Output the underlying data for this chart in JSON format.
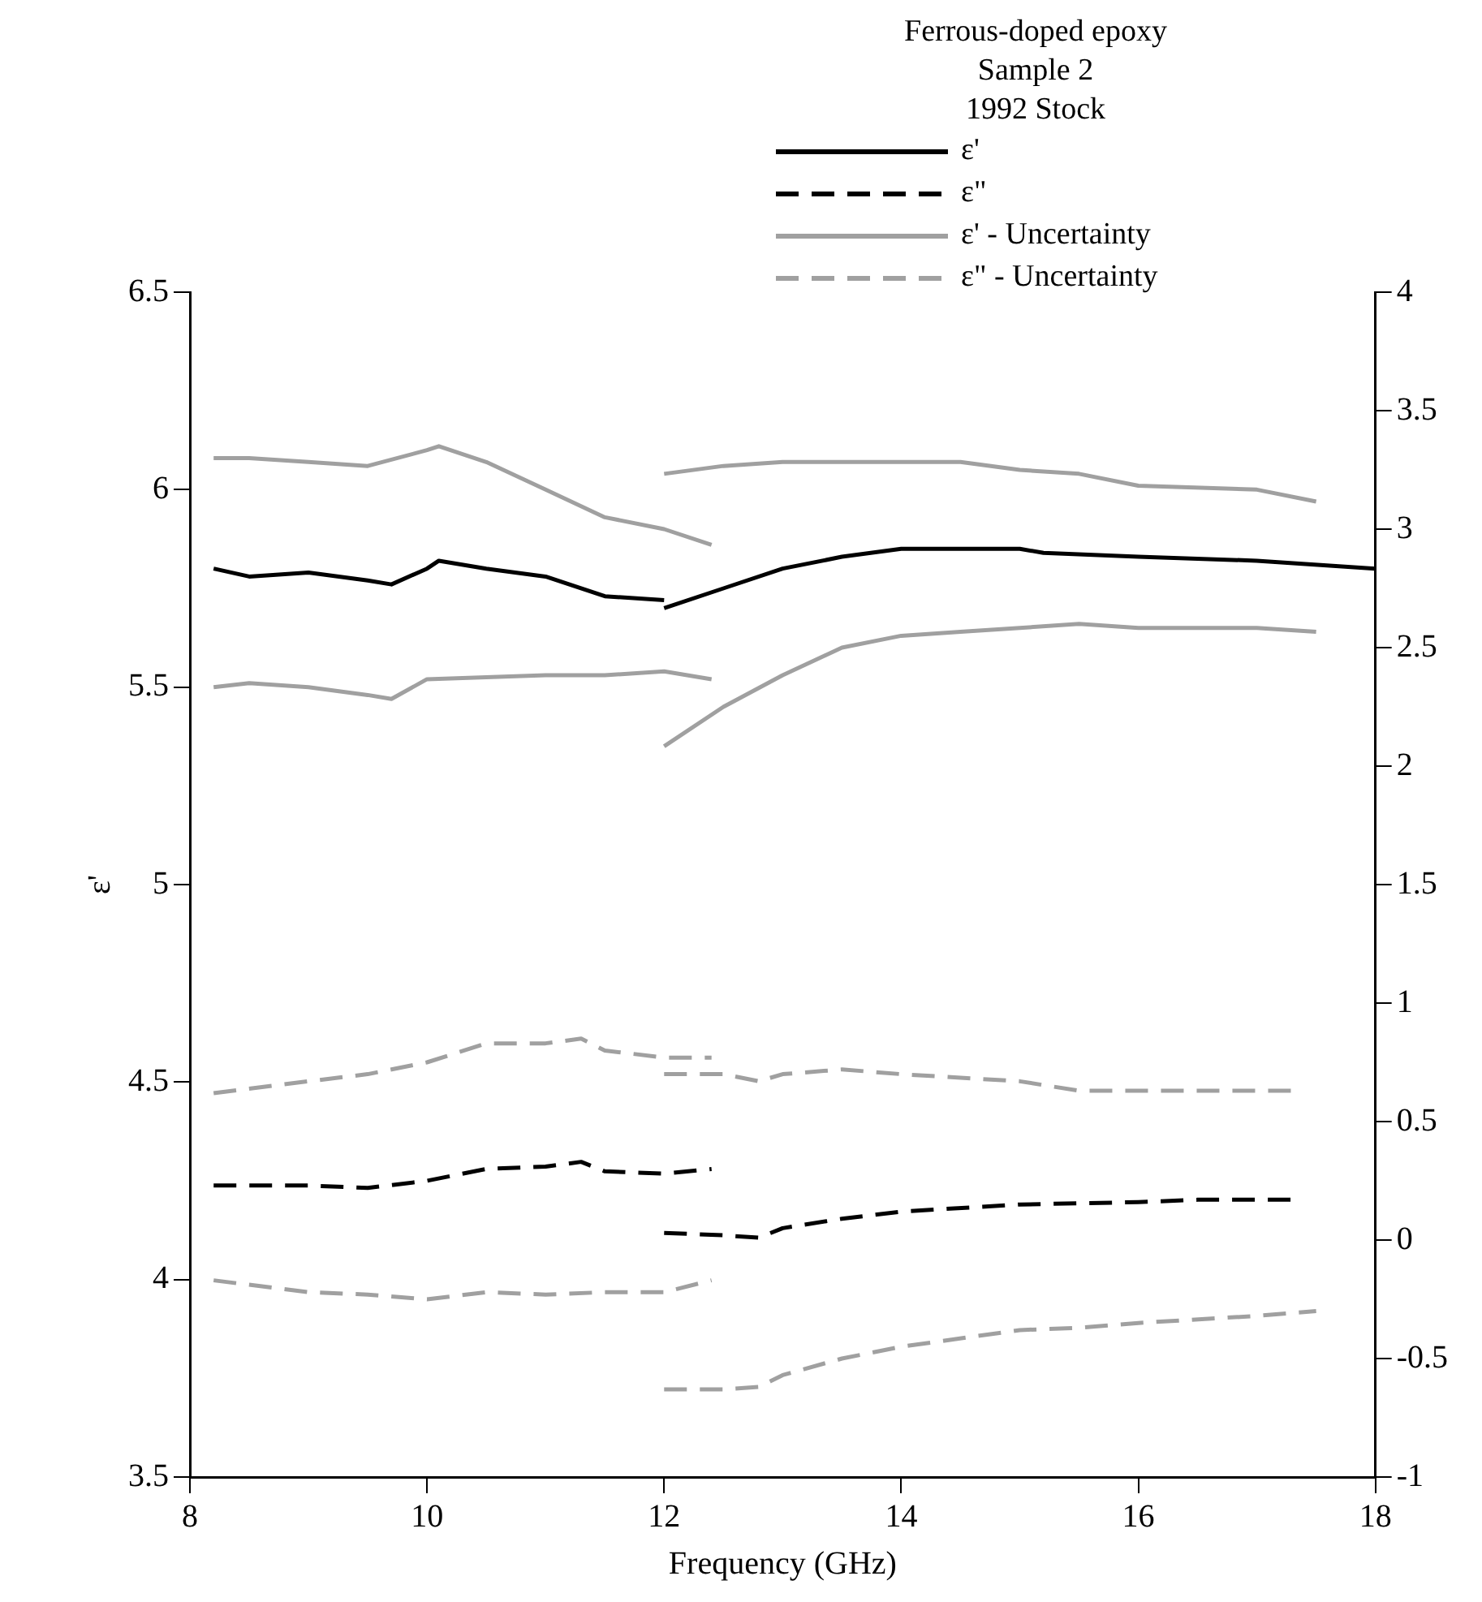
{
  "chart_data": {
    "type": "line",
    "legend_title": "Ferrous-doped epoxy\nSample 2\n1992 Stock",
    "xlabel": "Frequency (GHz)",
    "ylabel": "ε'",
    "xlim": [
      8,
      18
    ],
    "xticks": [
      8,
      10,
      12,
      14,
      16,
      18
    ],
    "ylim": [
      3.5,
      6.5
    ],
    "yticks": [
      3.5,
      4,
      4.5,
      5,
      5.5,
      6,
      6.5
    ],
    "y2lim": [
      -1,
      4
    ],
    "y2ticks": [
      -1,
      -0.5,
      0,
      0.5,
      1,
      1.5,
      2,
      2.5,
      3,
      3.5,
      4
    ],
    "legend": "top",
    "grid": false,
    "marker": "none",
    "series": [
      {
        "name": "ε'",
        "color": "#000000",
        "line_style": "solid",
        "x": [
          8.2,
          8.5,
          9,
          9.5,
          9.7,
          10,
          10.1,
          10.5,
          11,
          11.5,
          12
        ],
        "values": [
          5.8,
          5.78,
          5.79,
          5.77,
          5.76,
          5.8,
          5.82,
          5.8,
          5.78,
          5.73,
          5.72
        ]
      },
      {
        "color": "#000000",
        "line_style": "solid",
        "x": [
          12,
          12.5,
          13,
          13.5,
          14,
          14.5,
          15,
          15.2,
          16,
          17,
          18
        ],
        "values": [
          5.7,
          5.75,
          5.8,
          5.83,
          5.85,
          5.85,
          5.85,
          5.84,
          5.83,
          5.82,
          5.8
        ]
      },
      {
        "name": "ε\"",
        "color": "#000000",
        "line_style": "dashed",
        "axis": "y2",
        "x": [
          8.2,
          9,
          9.5,
          10,
          10.5,
          11,
          11.3,
          11.5,
          12,
          12.4
        ],
        "values": [
          0.23,
          0.23,
          0.22,
          0.25,
          0.3,
          0.31,
          0.33,
          0.29,
          0.28,
          0.3
        ]
      },
      {
        "color": "#000000",
        "line_style": "dashed",
        "axis": "y2",
        "x": [
          12,
          12.5,
          12.8,
          13,
          13.5,
          14,
          15,
          16,
          16.5,
          17,
          17.3
        ],
        "values": [
          0.03,
          0.02,
          0.01,
          0.05,
          0.09,
          0.12,
          0.15,
          0.16,
          0.17,
          0.17,
          0.17
        ]
      },
      {
        "name": "ε' - Uncertainty",
        "color": "#a0a0a0",
        "line_style": "solid",
        "x": [
          8.2,
          8.5,
          9,
          9.5,
          10,
          10.1,
          10.5,
          11,
          11.5,
          12,
          12.4
        ],
        "values": [
          6.08,
          6.08,
          6.07,
          6.06,
          6.1,
          6.11,
          6.07,
          6,
          5.93,
          5.9,
          5.86
        ]
      },
      {
        "color": "#a0a0a0",
        "line_style": "solid",
        "x": [
          12,
          12.5,
          13,
          14,
          14.5,
          15,
          15.5,
          16,
          17,
          17.5
        ],
        "values": [
          6.04,
          6.06,
          6.07,
          6.07,
          6.07,
          6.05,
          6.04,
          6.01,
          6,
          5.97
        ]
      },
      {
        "color": "#a0a0a0",
        "line_style": "solid",
        "x": [
          8.2,
          8.5,
          9,
          9.5,
          9.7,
          10,
          11,
          11.5,
          12,
          12.4
        ],
        "values": [
          5.5,
          5.51,
          5.5,
          5.48,
          5.47,
          5.52,
          5.53,
          5.53,
          5.54,
          5.52
        ]
      },
      {
        "color": "#a0a0a0",
        "line_style": "solid",
        "x": [
          12,
          12.5,
          13,
          13.5,
          14,
          14.5,
          15,
          15.5,
          16,
          17,
          17.5
        ],
        "values": [
          5.35,
          5.45,
          5.53,
          5.6,
          5.63,
          5.64,
          5.65,
          5.66,
          5.65,
          5.65,
          5.64
        ]
      },
      {
        "name": "ε\" - Uncertainty",
        "color": "#a0a0a0",
        "line_style": "dashed",
        "axis": "y2",
        "x": [
          8.2,
          9,
          9.5,
          10,
          10.5,
          11,
          11.3,
          11.5,
          12,
          12.4
        ],
        "values": [
          0.62,
          0.67,
          0.7,
          0.75,
          0.83,
          0.83,
          0.85,
          0.8,
          0.77,
          0.77
        ]
      },
      {
        "color": "#a0a0a0",
        "line_style": "dashed",
        "axis": "y2",
        "x": [
          12,
          12.5,
          12.8,
          13,
          13.5,
          14,
          15,
          15.5,
          16,
          17,
          17.3
        ],
        "values": [
          0.7,
          0.7,
          0.67,
          0.7,
          0.72,
          0.7,
          0.67,
          0.63,
          0.63,
          0.63,
          0.63
        ]
      },
      {
        "color": "#a0a0a0",
        "line_style": "dashed",
        "axis": "y2",
        "x": [
          8.2,
          9,
          9.5,
          10,
          10.5,
          11,
          11.5,
          12,
          12.4
        ],
        "values": [
          -0.17,
          -0.22,
          -0.23,
          -0.25,
          -0.22,
          -0.23,
          -0.22,
          -0.22,
          -0.17
        ]
      },
      {
        "color": "#a0a0a0",
        "line_style": "dashed",
        "axis": "y2",
        "x": [
          12,
          12.5,
          12.8,
          13,
          13.5,
          14,
          15,
          15.5,
          16,
          17,
          17.5
        ],
        "values": [
          -0.63,
          -0.63,
          -0.62,
          -0.57,
          -0.5,
          -0.45,
          -0.38,
          -0.37,
          -0.35,
          -0.32,
          -0.3
        ]
      }
    ]
  }
}
